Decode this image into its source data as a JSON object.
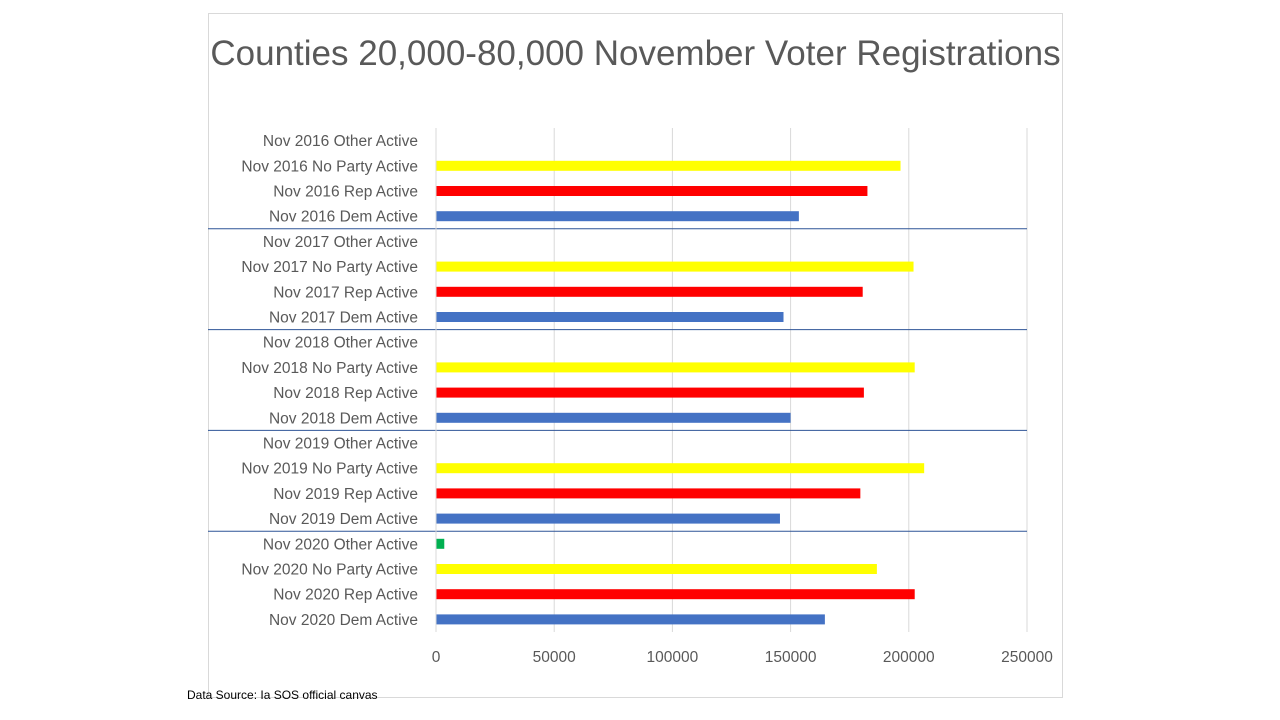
{
  "source_note": "Data Source: Ia SOS official canvas",
  "colors": {
    "dem": "#4472c4",
    "rep": "#ff0000",
    "no_party": "#ffff00",
    "other": "#00b050",
    "grid": "#d9d9d9",
    "separator": "#2f5597"
  },
  "chart_data": {
    "type": "bar",
    "orientation": "horizontal",
    "title": "Counties 20,000-80,000 November Voter Registrations",
    "xlim": [
      0,
      250000
    ],
    "x_ticks": [
      "0",
      "50000",
      "100000",
      "150000",
      "200000",
      "250000"
    ],
    "grid": true,
    "legend": "none",
    "categories": [
      "Nov 2016 Other Active",
      "Nov 2016 No  Party Active",
      "Nov 2016 Rep Active",
      "Nov 2016 Dem Active",
      "Nov 2017 Other Active",
      "Nov 2017 No  Party Active",
      "Nov 2017 Rep Active",
      "Nov 2017 Dem Active",
      "Nov 2018 Other Active",
      "Nov 2018 No  Party Active",
      "Nov 2018 Rep Active",
      "Nov 2018 Dem Active",
      "Nov 2019 Other Active",
      "Nov 2019 No  Party Active",
      "Nov 2019 Rep Active",
      "Nov 2019 Dem Active",
      "Nov 2020 Other Active",
      "Nov 2020 No  Party Active",
      "Nov 2020 Rep Active",
      "Nov 2020 Dem Active"
    ],
    "values": [
      0,
      196500,
      182500,
      153500,
      0,
      202000,
      180500,
      147000,
      0,
      202500,
      181000,
      150000,
      0,
      206500,
      179500,
      145500,
      3500,
      186500,
      202500,
      164500
    ],
    "bar_parties": [
      "other",
      "no_party",
      "rep",
      "dem",
      "other",
      "no_party",
      "rep",
      "dem",
      "other",
      "no_party",
      "rep",
      "dem",
      "other",
      "no_party",
      "rep",
      "dem",
      "other",
      "no_party",
      "rep",
      "dem"
    ],
    "groups": [
      "Nov 2016",
      "Nov 2017",
      "Nov 2018",
      "Nov 2019",
      "Nov 2020"
    ]
  }
}
